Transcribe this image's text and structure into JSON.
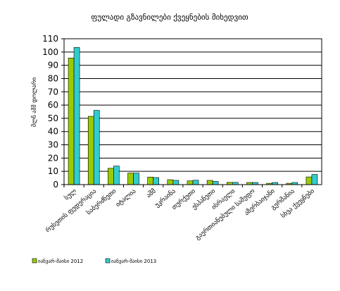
{
  "chart_data": {
    "type": "bar",
    "title": "ფულადი გზავნილები ქვეყნების მიხედვით",
    "subtitle": "",
    "xlabel": "",
    "ylabel": "მლნ აშშ დოლარი",
    "ylim": [
      0,
      110
    ],
    "yticks": [
      0,
      10,
      20,
      30,
      40,
      50,
      60,
      70,
      80,
      90,
      100,
      110
    ],
    "grid": true,
    "legend_position": "bottom-left",
    "categories": [
      "სულ",
      "რუსეთის ფედერაცია",
      "საბერძნეთი",
      "იტალია",
      "აშშ",
      "უკრაინა",
      "თურქეთი",
      "ესპანეთი",
      "ისრაელი",
      "გაერთიანებული სამეფო",
      "აზერბაიჯანი",
      "გერმანია",
      "სხვა ქვეყნები"
    ],
    "series": [
      {
        "name": "იანვარ-მაისი 2012",
        "color": "#99cc00",
        "values": [
          95.5,
          51.5,
          12.3,
          8.7,
          5.7,
          3.7,
          2.8,
          3.2,
          1.7,
          1.6,
          1.0,
          1.0,
          5.8
        ]
      },
      {
        "name": "იანვარ-მაისი 2013",
        "color": "#33cccc",
        "values": [
          103.5,
          56.0,
          14.0,
          8.7,
          5.3,
          3.2,
          3.3,
          2.4,
          1.7,
          1.6,
          1.6,
          1.6,
          7.7
        ]
      }
    ]
  }
}
